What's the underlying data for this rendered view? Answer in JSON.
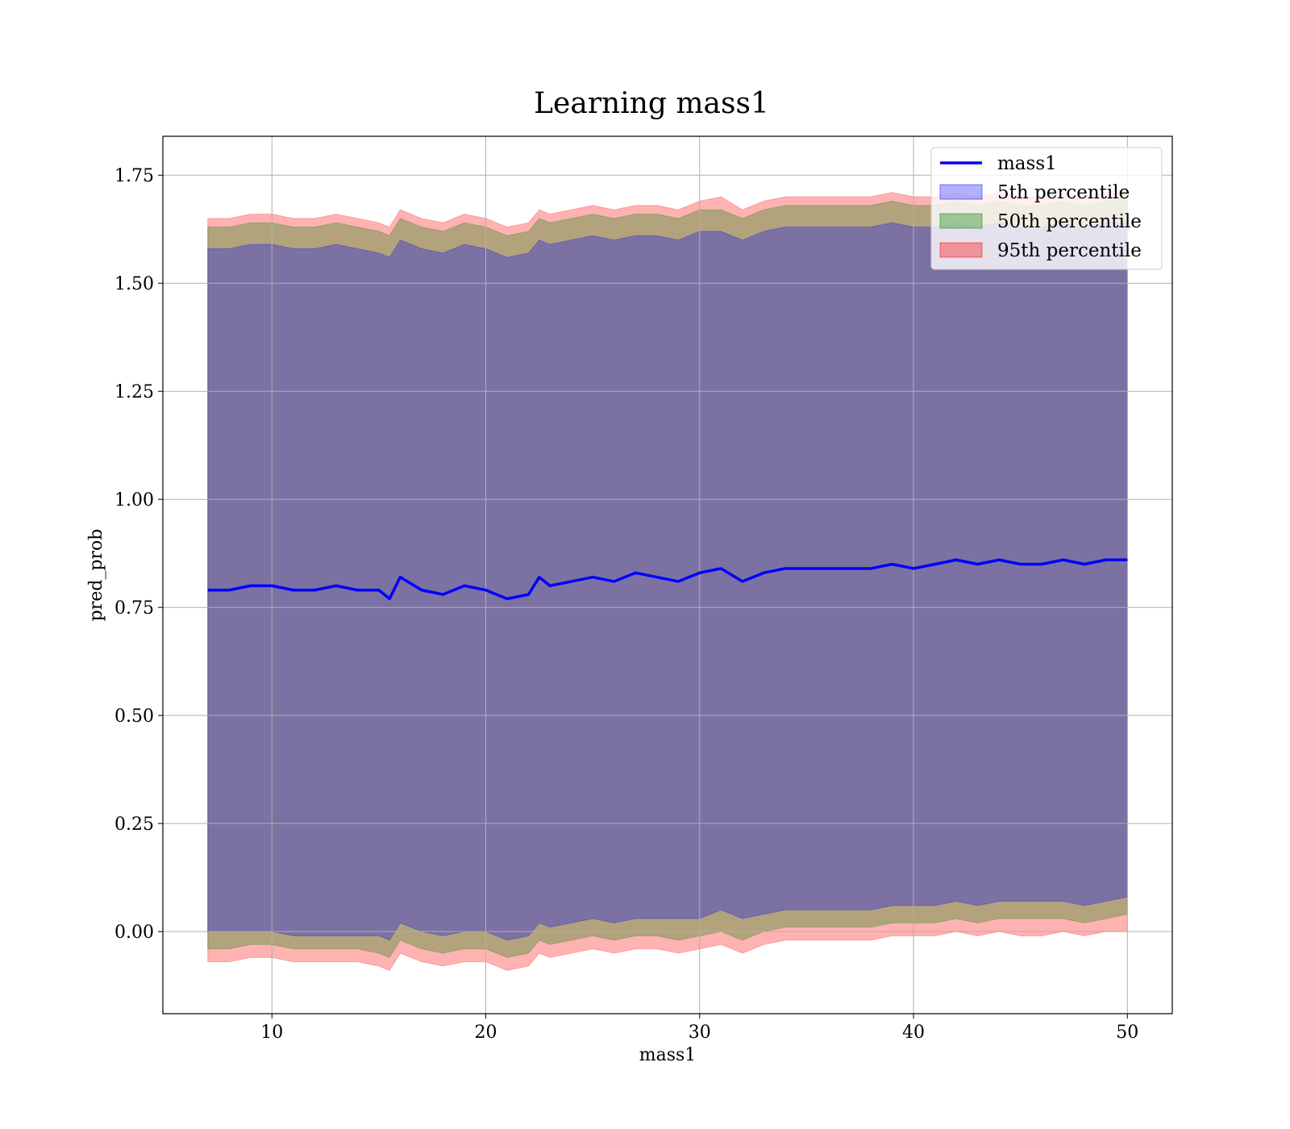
{
  "chart_data": {
    "type": "line",
    "title": "Learning mass1",
    "xlabel": "mass1",
    "ylabel": "pred_prob",
    "xlim": [
      4.9,
      52.1
    ],
    "ylim": [
      -0.19,
      1.84
    ],
    "xticks": [
      10,
      20,
      30,
      40,
      50
    ],
    "yticks": [
      0.0,
      0.25,
      0.5,
      0.75,
      1.0,
      1.25,
      1.5,
      1.75
    ],
    "ytick_labels": [
      "0.00",
      "0.25",
      "0.50",
      "0.75",
      "1.00",
      "1.25",
      "1.50",
      "1.75"
    ],
    "xtick_labels": [
      "10",
      "20",
      "30",
      "40",
      "50"
    ],
    "grid": true,
    "legend_position": "top-right",
    "x": [
      7.0,
      8.0,
      9.0,
      10.0,
      11.0,
      12.0,
      13.0,
      14.0,
      15.0,
      15.5,
      16.0,
      17.0,
      18.0,
      19.0,
      20.0,
      21.0,
      22.0,
      22.5,
      23.0,
      24.0,
      25.0,
      26.0,
      27.0,
      28.0,
      29.0,
      30.0,
      31.0,
      32.0,
      33.0,
      34.0,
      35.0,
      36.0,
      37.0,
      38.0,
      39.0,
      40.0,
      41.0,
      42.0,
      43.0,
      44.0,
      45.0,
      46.0,
      47.0,
      48.0,
      49.0,
      50.0
    ],
    "series": [
      {
        "name": "mass1",
        "color": "#0000ff",
        "values": [
          0.79,
          0.79,
          0.8,
          0.8,
          0.79,
          0.79,
          0.8,
          0.79,
          0.79,
          0.77,
          0.82,
          0.79,
          0.78,
          0.8,
          0.79,
          0.77,
          0.78,
          0.82,
          0.8,
          0.81,
          0.82,
          0.81,
          0.83,
          0.82,
          0.81,
          0.83,
          0.84,
          0.81,
          0.83,
          0.84,
          0.84,
          0.84,
          0.84,
          0.84,
          0.85,
          0.84,
          0.85,
          0.86,
          0.85,
          0.86,
          0.85,
          0.85,
          0.86,
          0.85,
          0.86,
          0.86
        ]
      },
      {
        "name": "5th percentile",
        "color": "#0000ff",
        "lower": [
          0.0,
          0.0,
          0.0,
          0.0,
          -0.01,
          -0.01,
          -0.01,
          -0.01,
          -0.01,
          -0.02,
          0.02,
          0.0,
          -0.01,
          0.0,
          0.0,
          -0.02,
          -0.01,
          0.02,
          0.01,
          0.02,
          0.03,
          0.02,
          0.03,
          0.03,
          0.03,
          0.03,
          0.05,
          0.03,
          0.04,
          0.05,
          0.05,
          0.05,
          0.05,
          0.05,
          0.06,
          0.06,
          0.06,
          0.07,
          0.06,
          0.07,
          0.07,
          0.07,
          0.07,
          0.06,
          0.07,
          0.08
        ],
        "upper": [
          1.58,
          1.58,
          1.59,
          1.59,
          1.58,
          1.58,
          1.59,
          1.58,
          1.57,
          1.56,
          1.6,
          1.58,
          1.57,
          1.59,
          1.58,
          1.56,
          1.57,
          1.6,
          1.59,
          1.6,
          1.61,
          1.6,
          1.61,
          1.61,
          1.6,
          1.62,
          1.62,
          1.6,
          1.62,
          1.63,
          1.63,
          1.63,
          1.63,
          1.63,
          1.64,
          1.63,
          1.63,
          1.64,
          1.63,
          1.64,
          1.63,
          1.63,
          1.64,
          1.63,
          1.64,
          1.64
        ]
      },
      {
        "name": "50th percentile",
        "color": "#008000",
        "lower": [
          -0.04,
          -0.04,
          -0.03,
          -0.03,
          -0.04,
          -0.04,
          -0.04,
          -0.04,
          -0.05,
          -0.06,
          -0.02,
          -0.04,
          -0.05,
          -0.04,
          -0.04,
          -0.06,
          -0.05,
          -0.02,
          -0.03,
          -0.02,
          -0.01,
          -0.02,
          -0.01,
          -0.01,
          -0.02,
          -0.01,
          0.0,
          -0.02,
          0.0,
          0.01,
          0.01,
          0.01,
          0.01,
          0.01,
          0.02,
          0.02,
          0.02,
          0.03,
          0.02,
          0.03,
          0.03,
          0.03,
          0.03,
          0.02,
          0.03,
          0.04
        ],
        "upper": [
          1.63,
          1.63,
          1.64,
          1.64,
          1.63,
          1.63,
          1.64,
          1.63,
          1.62,
          1.61,
          1.65,
          1.63,
          1.62,
          1.64,
          1.63,
          1.61,
          1.62,
          1.65,
          1.64,
          1.65,
          1.66,
          1.65,
          1.66,
          1.66,
          1.65,
          1.67,
          1.67,
          1.65,
          1.67,
          1.68,
          1.68,
          1.68,
          1.68,
          1.68,
          1.69,
          1.68,
          1.68,
          1.69,
          1.68,
          1.69,
          1.68,
          1.68,
          1.69,
          1.68,
          1.69,
          1.7
        ]
      },
      {
        "name": "95th percentile",
        "color": "#ff0000",
        "lower": [
          -0.07,
          -0.07,
          -0.06,
          -0.06,
          -0.07,
          -0.07,
          -0.07,
          -0.07,
          -0.08,
          -0.09,
          -0.05,
          -0.07,
          -0.08,
          -0.07,
          -0.07,
          -0.09,
          -0.08,
          -0.05,
          -0.06,
          -0.05,
          -0.04,
          -0.05,
          -0.04,
          -0.04,
          -0.05,
          -0.04,
          -0.03,
          -0.05,
          -0.03,
          -0.02,
          -0.02,
          -0.02,
          -0.02,
          -0.02,
          -0.01,
          -0.01,
          -0.01,
          0.0,
          -0.01,
          0.0,
          -0.01,
          -0.01,
          0.0,
          -0.01,
          0.0,
          0.0
        ],
        "upper": [
          1.65,
          1.65,
          1.66,
          1.66,
          1.65,
          1.65,
          1.66,
          1.65,
          1.64,
          1.63,
          1.67,
          1.65,
          1.64,
          1.66,
          1.65,
          1.63,
          1.64,
          1.67,
          1.66,
          1.67,
          1.68,
          1.67,
          1.68,
          1.68,
          1.67,
          1.69,
          1.7,
          1.67,
          1.69,
          1.7,
          1.7,
          1.7,
          1.7,
          1.7,
          1.71,
          1.7,
          1.7,
          1.71,
          1.7,
          1.71,
          1.7,
          1.7,
          1.71,
          1.7,
          1.71,
          1.72
        ]
      }
    ]
  }
}
